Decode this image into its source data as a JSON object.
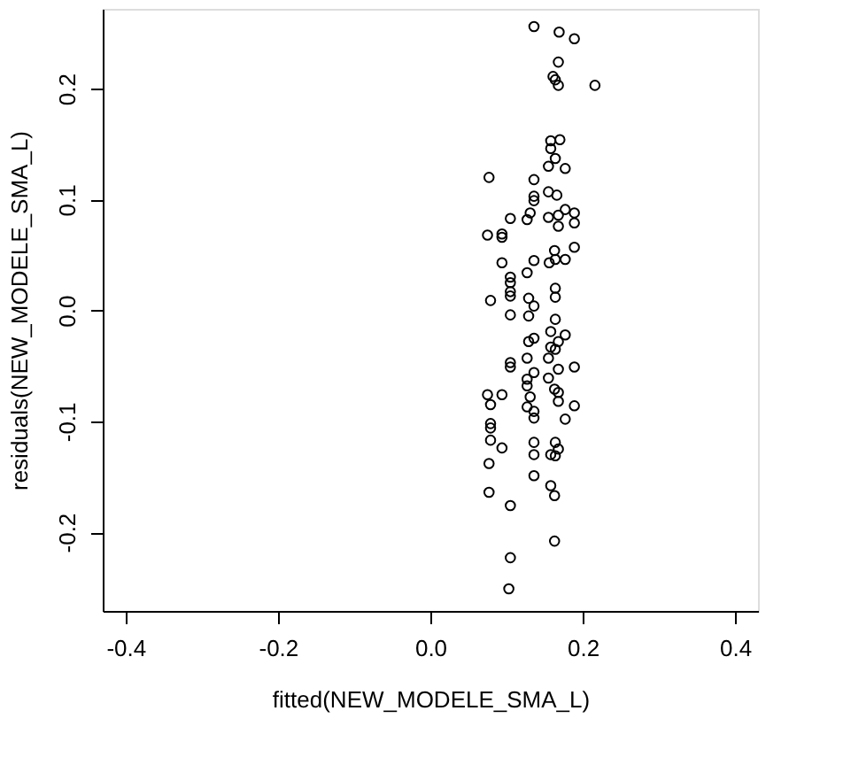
{
  "chart_data": {
    "type": "scatter",
    "xlabel": "fitted(NEW_MODELE_SMA_L)",
    "ylabel": "residuals(NEW_MODELE_SMA_L)",
    "xlim": [
      -0.43,
      0.43
    ],
    "ylim": [
      -0.271,
      0.272
    ],
    "xticks": [
      -0.4,
      -0.2,
      {
        "value": 0,
        "label": "0.0"
      },
      0.2,
      0.4
    ],
    "yticks": [
      -0.2,
      -0.1,
      {
        "value": 0,
        "label": "0.0"
      },
      0.1,
      0.2
    ],
    "grid": false,
    "marker": "circle",
    "color": "#000000",
    "x": [
      0.136,
      0.169,
      0.189,
      0.168,
      0.161,
      0.164,
      0.168,
      0.216,
      0.158,
      0.17,
      0.158,
      0.164,
      0.155,
      0.177,
      0.077,
      0.136,
      0.155,
      0.166,
      0.136,
      0.136,
      0.131,
      0.127,
      0.105,
      0.155,
      0.168,
      0.177,
      0.189,
      0.189,
      0.168,
      0.075,
      0.094,
      0.094,
      0.163,
      0.189,
      0.094,
      0.136,
      0.156,
      0.164,
      0.177,
      0.127,
      0.105,
      0.105,
      0.105,
      0.105,
      0.164,
      0.164,
      0.079,
      0.129,
      0.136,
      0.105,
      0.129,
      0.164,
      0.158,
      0.177,
      0.136,
      0.129,
      0.168,
      0.158,
      0.164,
      0.155,
      0.127,
      0.105,
      0.105,
      0.189,
      0.168,
      0.136,
      0.155,
      0.127,
      0.127,
      0.131,
      0.163,
      0.168,
      0.075,
      0.094,
      0.079,
      0.168,
      0.189,
      0.127,
      0.136,
      0.136,
      0.177,
      0.079,
      0.079,
      0.079,
      0.094,
      0.136,
      0.164,
      0.168,
      0.158,
      0.136,
      0.164,
      0.077,
      0.136,
      0.158,
      0.077,
      0.163,
      0.105,
      0.163,
      0.105,
      0.103
    ],
    "values": [
      0.256,
      0.251,
      0.245,
      0.224,
      0.211,
      0.208,
      0.203,
      0.203,
      0.153,
      0.154,
      0.146,
      0.137,
      0.13,
      0.128,
      0.12,
      0.118,
      0.107,
      0.104,
      0.103,
      0.099,
      0.088,
      0.082,
      0.083,
      0.084,
      0.086,
      0.091,
      0.088,
      0.079,
      0.076,
      0.068,
      0.069,
      0.066,
      0.054,
      0.057,
      0.043,
      0.045,
      0.043,
      0.046,
      0.046,
      0.034,
      0.03,
      0.025,
      0.017,
      0.013,
      0.02,
      0.012,
      0.009,
      0.011,
      0.004,
      -0.004,
      -0.005,
      -0.008,
      -0.019,
      -0.022,
      -0.025,
      -0.028,
      -0.028,
      -0.033,
      -0.035,
      -0.043,
      -0.043,
      -0.047,
      -0.051,
      -0.051,
      -0.053,
      -0.056,
      -0.061,
      -0.062,
      -0.068,
      -0.078,
      -0.071,
      -0.074,
      -0.076,
      -0.076,
      -0.085,
      -0.082,
      -0.086,
      -0.087,
      -0.091,
      -0.097,
      -0.098,
      -0.102,
      -0.106,
      -0.117,
      -0.124,
      -0.119,
      -0.119,
      -0.125,
      -0.13,
      -0.13,
      -0.131,
      -0.138,
      -0.149,
      -0.158,
      -0.164,
      -0.167,
      -0.176,
      -0.208,
      -0.223,
      -0.251
    ]
  }
}
